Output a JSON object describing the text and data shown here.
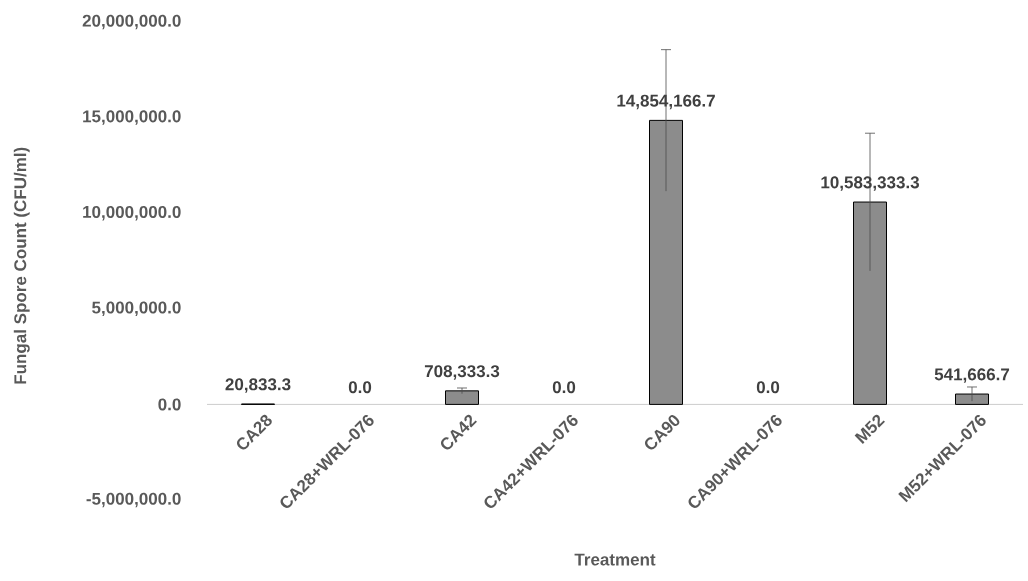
{
  "chart_data": {
    "type": "bar",
    "xlabel": "Treatment",
    "ylabel": "Fungal Spore Count (CFU/ml)",
    "categories": [
      "CA28",
      "CA28+WRL-076",
      "CA42",
      "CA42+WRL-076",
      "CA90",
      "CA90+WRL-076",
      "M52",
      "M52+WRL-076"
    ],
    "values": [
      20833.3,
      0,
      708333.3,
      0,
      14854166.7,
      0,
      10583333.3,
      541666.7
    ],
    "value_labels": [
      "20,833.3",
      "0.0",
      "708,333.3",
      "0.0",
      "14,854,166.7",
      "0.0",
      "10,583,333.3",
      "541,666.7"
    ],
    "errors": [
      null,
      null,
      150000,
      null,
      3700000,
      null,
      3600000,
      370000
    ],
    "color": "#8c8c8c",
    "ylim": [
      -5000000,
      20000000
    ],
    "yticks": [
      {
        "value": -5000000,
        "label": "-5,000,000.0"
      },
      {
        "value": 0,
        "label": "0.0"
      },
      {
        "value": 5000000,
        "label": "5,000,000.0"
      },
      {
        "value": 10000000,
        "label": "10,000,000.0"
      },
      {
        "value": 15000000,
        "label": "15,000,000.0"
      },
      {
        "value": 20000000,
        "label": "20,000,000.0"
      }
    ]
  }
}
